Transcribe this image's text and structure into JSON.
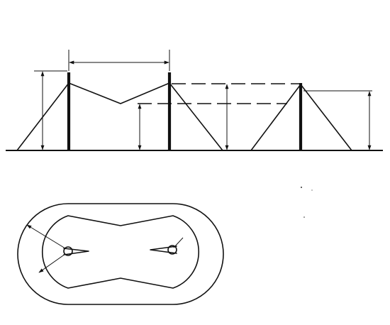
{
  "diagram": {
    "views": [
      "elevation",
      "plan"
    ],
    "colors": {
      "line": "#111111",
      "background": "#ffffff"
    }
  }
}
